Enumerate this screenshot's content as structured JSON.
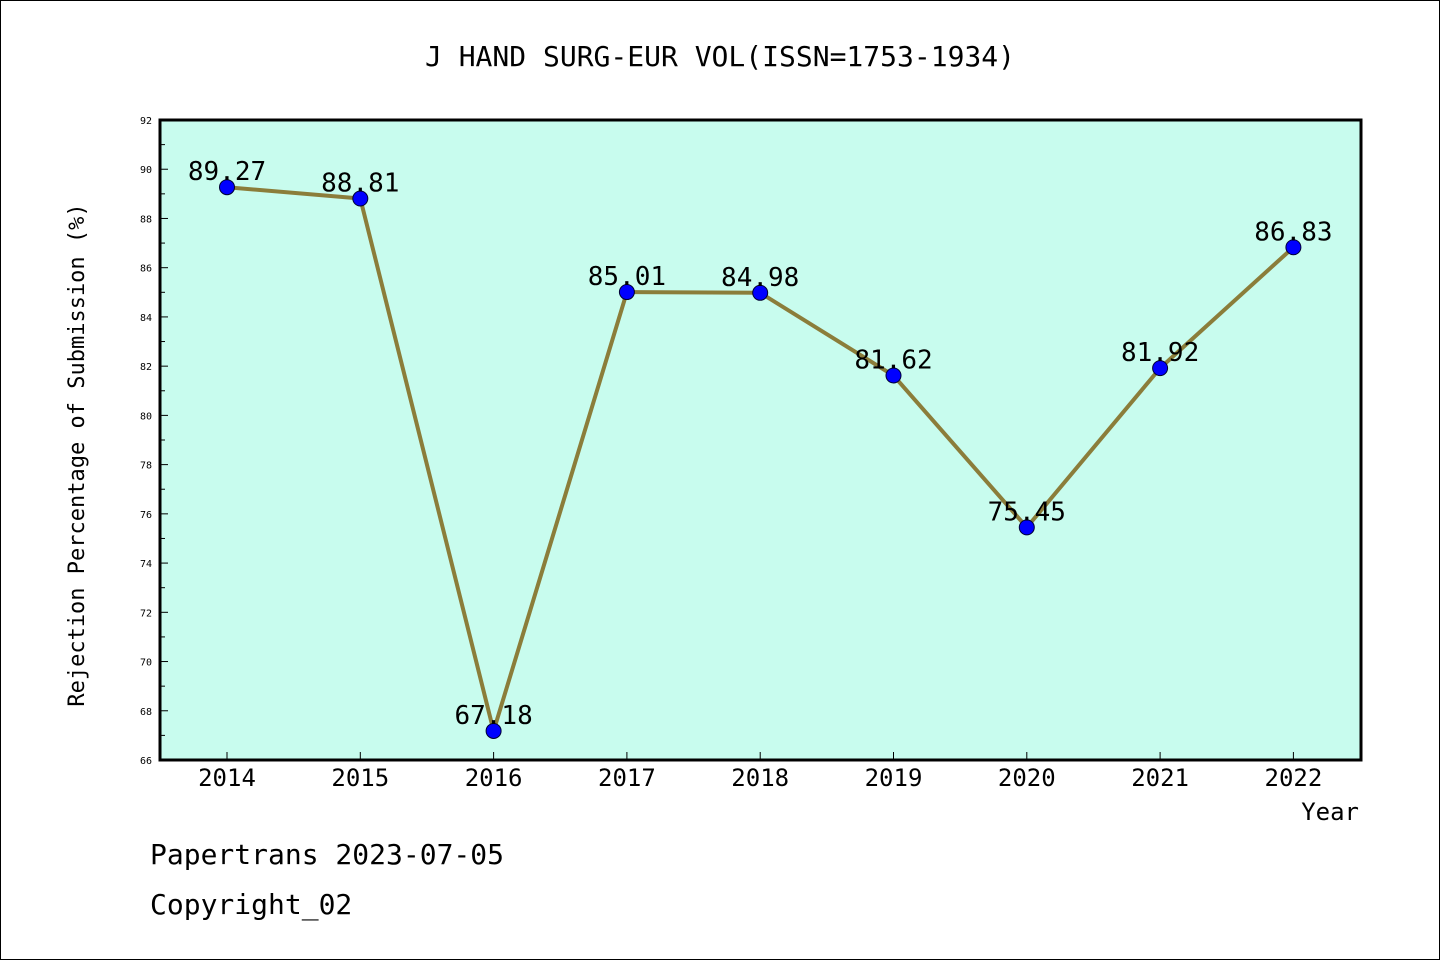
{
  "chart_data": {
    "type": "line",
    "title": "J HAND SURG-EUR VOL(ISSN=1753-1934)",
    "xlabel": "Year",
    "ylabel": "Rejection Percentage of Submission (%)",
    "categories": [
      "2014",
      "2015",
      "2016",
      "2017",
      "2018",
      "2019",
      "2020",
      "2021",
      "2022"
    ],
    "series": [
      {
        "values": [
          89.27,
          88.81,
          67.18,
          85.01,
          84.98,
          81.62,
          75.45,
          81.92,
          86.83
        ],
        "labels": [
          "89.27",
          "88.81",
          "67.18",
          "85.01",
          "84.98",
          "81.62",
          "75.45",
          "81.92",
          "86.83"
        ]
      }
    ],
    "ylim": [
      66,
      92
    ],
    "yticks": [
      "66",
      "68",
      "70",
      "72",
      "74",
      "76",
      "78",
      "80",
      "82",
      "84",
      "86",
      "88",
      "90",
      "92"
    ],
    "grid": false,
    "colors": {
      "plot_background": "#c8fcee",
      "line": "#8b7d3a",
      "marker": "#0000ff"
    }
  },
  "footer": {
    "line1": "Papertrans 2023-07-05",
    "line2": "Copyright_02"
  }
}
